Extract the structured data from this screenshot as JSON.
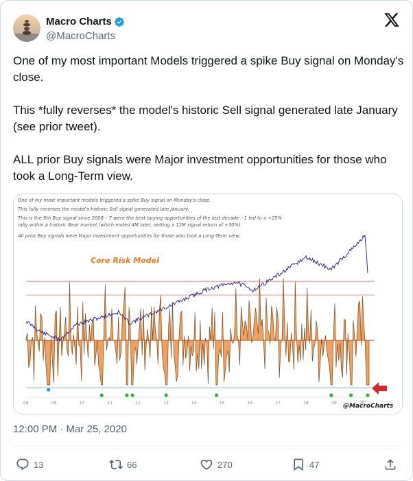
{
  "author": {
    "name": "Macro Charts",
    "handle": "@MacroCharts",
    "verified": true
  },
  "tweet": {
    "paragraphs": [
      "One of my most important Models triggered a spike Buy signal on Monday's close.",
      "This *fully reverses* the model's historic Sell signal generated late January (see prior tweet).",
      "ALL prior Buy signals were Major investment opportunities for those who took a Long-Term view."
    ]
  },
  "media": {
    "annotation_lines": [
      "One of my most important models triggered a spike Buy signal on Monday's close.",
      "This fully reverses the model's historic Sell signal generated late January.",
      "This is the 9th Buy signal since 2008 – 7 were the best buying opportunities of the last decade – 1 led to a +25%",
      "rally within a historic Bear market (which ended 4M later, netting a 12M signal return of +30%).",
      "All prior Buy signals were Major investment opportunities for those who took a Long-Term view."
    ],
    "model_label": "Core Risk Model",
    "watermark": "@MacroCharts",
    "colors": {
      "price_line": "#1f1a8c",
      "oscillator_fill": "#f2a05e",
      "oscillator_stroke": "#7a4a1e",
      "upper_band": "#e07070",
      "lower_band": "#9fd0c8",
      "buy_dot_green": "#2fb53a",
      "buy_dot_blue": "#2a9be0",
      "arrow": "#d62828",
      "highlight_red": "#d62828"
    }
  },
  "chart_data": {
    "type": "line",
    "title": "Core Risk Model",
    "x_tick_labels": [
      "08",
      "09",
      "10",
      "11",
      "12",
      "13",
      "14",
      "15",
      "16",
      "17",
      "18",
      "19",
      "20"
    ],
    "x": [
      2008,
      2009,
      2010,
      2011,
      2012,
      2013,
      2014,
      2015,
      2016,
      2017,
      2018,
      2019,
      2020
    ],
    "series": [],
    "buy_signals": [
      {
        "year": 2008.8,
        "color": "blue"
      },
      {
        "year": 2010.7,
        "color": "green"
      },
      {
        "year": 2011.6,
        "color": "green"
      },
      {
        "year": 2011.8,
        "color": "green"
      },
      {
        "year": 2013.0,
        "color": "green"
      },
      {
        "year": 2014.8,
        "color": "green"
      },
      {
        "year": 2018.9,
        "color": "green"
      },
      {
        "year": 2019.6,
        "color": "green"
      },
      {
        "year": 2020.2,
        "color": "green"
      }
    ],
    "grid": false,
    "legend": "none"
  },
  "footer": {
    "timestamp": "12:00 PM · Mar 25, 2020"
  },
  "actions": {
    "replies": "13",
    "reposts": "66",
    "likes": "270",
    "bookmarks": "47"
  }
}
